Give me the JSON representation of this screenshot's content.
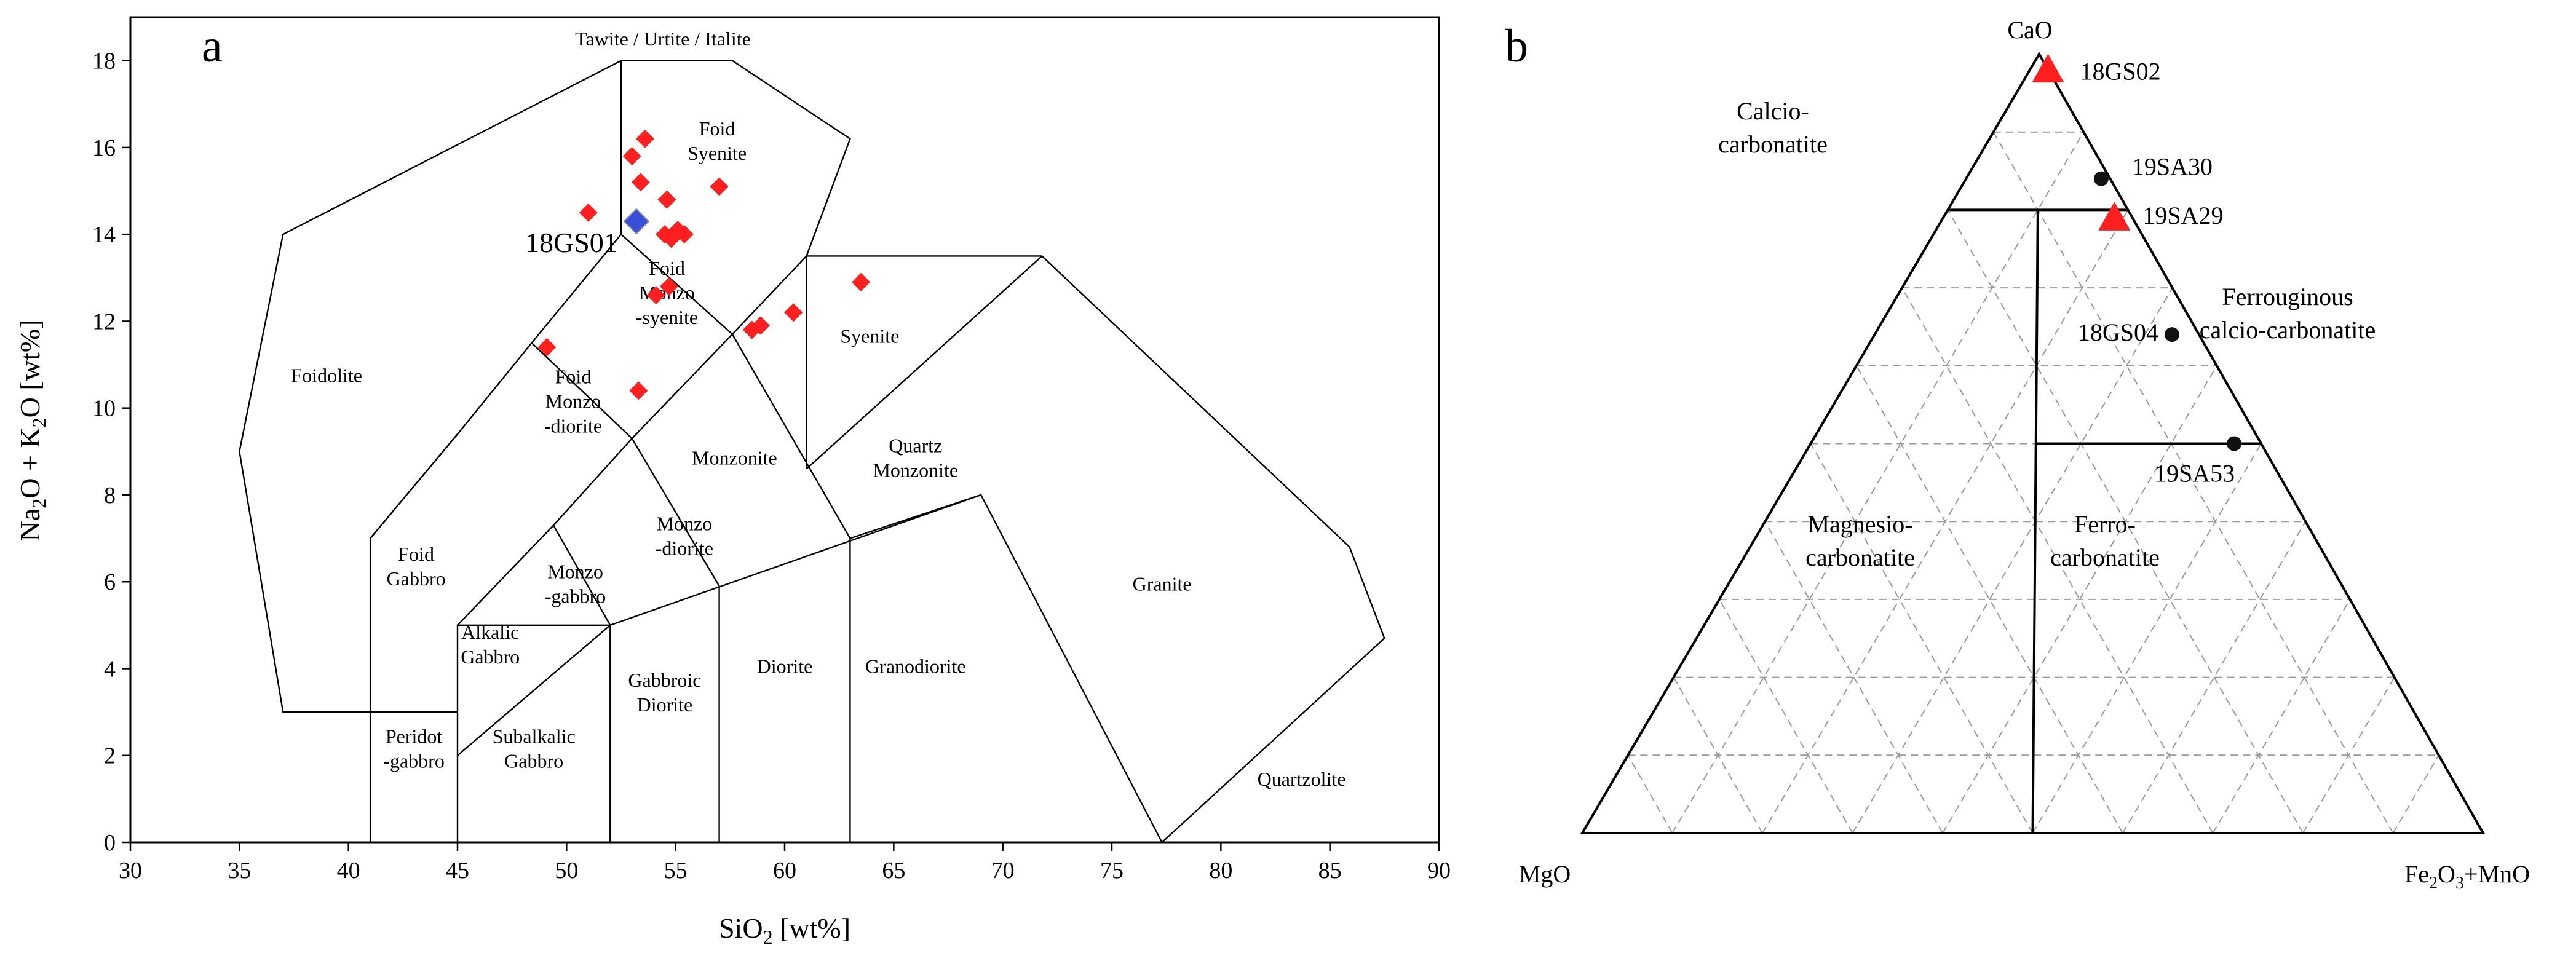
{
  "colors": {
    "sample_red": "#ff1f1f",
    "sample_blue": "#3a4fd8",
    "sample_black": "#111111",
    "grid_dashed": "#9a9a9a"
  },
  "panel_a": {
    "panel_label": "a",
    "chart_data": {
      "type": "scatter",
      "xlabel": "SiO2 [wt%]",
      "ylabel": "Na2O + K2O [wt%]",
      "xlim": [
        30,
        90
      ],
      "ylim": [
        0,
        19
      ],
      "xticks": [
        "30",
        "35",
        "40",
        "45",
        "50",
        "55",
        "60",
        "65",
        "70",
        "75",
        "80",
        "85",
        "90"
      ],
      "yticks": [
        "0",
        "2",
        "4",
        "6",
        "8",
        "10",
        "12",
        "14",
        "16",
        "18"
      ],
      "top_label": "Tawite / Urtite / Italite",
      "fields": [
        {
          "name": "Foidolite",
          "lines": [
            "Foidolite"
          ]
        },
        {
          "name": "Foid Syenite",
          "lines": [
            "Foid",
            "Syenite"
          ]
        },
        {
          "name": "Foid Monzo-syenite",
          "lines": [
            "Foid",
            "Monzo",
            "-syenite"
          ]
        },
        {
          "name": "Syenite",
          "lines": [
            "Syenite"
          ]
        },
        {
          "name": "Foid Monzo-diorite",
          "lines": [
            "Foid",
            "Monzo",
            "-diorite"
          ]
        },
        {
          "name": "Monzonite",
          "lines": [
            "Monzonite"
          ]
        },
        {
          "name": "Quartz Monzonite",
          "lines": [
            "Quartz",
            "Monzonite"
          ]
        },
        {
          "name": "Foid Gabbro",
          "lines": [
            "Foid",
            "Gabbro"
          ]
        },
        {
          "name": "Monzo-gabbro",
          "lines": [
            "Monzo",
            "-gabbro"
          ]
        },
        {
          "name": "Monzo-diorite",
          "lines": [
            "Monzo",
            "-diorite"
          ]
        },
        {
          "name": "Granite",
          "lines": [
            "Granite"
          ]
        },
        {
          "name": "Alkalic Gabbro",
          "lines": [
            "Alkalic",
            "Gabbro"
          ]
        },
        {
          "name": "Gabbroic Diorite",
          "lines": [
            "Gabbroic",
            "Diorite"
          ]
        },
        {
          "name": "Diorite",
          "lines": [
            "Diorite"
          ]
        },
        {
          "name": "Granodiorite",
          "lines": [
            "Granodiorite"
          ]
        },
        {
          "name": "Peridot-gabbro",
          "lines": [
            "Peridot",
            "-gabbro"
          ]
        },
        {
          "name": "Subalkalic Gabbro",
          "lines": [
            "Subalkalic",
            "Gabbro"
          ]
        },
        {
          "name": "Quartzolite",
          "lines": [
            "Quartzolite"
          ]
        }
      ],
      "series": [
        {
          "marker": "diamond",
          "color": "#ff1f1f",
          "points": [
            [
              53.6,
              16.2
            ],
            [
              53.0,
              15.8
            ],
            [
              53.4,
              15.2
            ],
            [
              51.0,
              14.5
            ],
            [
              54.6,
              14.8
            ],
            [
              57.0,
              15.1
            ],
            [
              54.5,
              14.0
            ],
            [
              55.1,
              14.1
            ],
            [
              54.8,
              13.9
            ],
            [
              55.4,
              14.0
            ],
            [
              54.1,
              12.6
            ],
            [
              54.7,
              12.8
            ],
            [
              49.1,
              11.4
            ],
            [
              53.3,
              10.4
            ],
            [
              58.5,
              11.8
            ],
            [
              58.9,
              11.9
            ],
            [
              60.4,
              12.2
            ],
            [
              63.5,
              12.9
            ]
          ]
        },
        {
          "name": "18GS01",
          "marker": "diamond",
          "color": "#3a4fd8",
          "points": [
            [
              53.2,
              14.3
            ]
          ]
        }
      ],
      "annotations": [
        {
          "text": "18GS01",
          "x": 53.2,
          "y": 14.3
        }
      ]
    }
  },
  "panel_b": {
    "panel_label": "b",
    "chart_data": {
      "type": "ternary",
      "corners": {
        "top": "CaO",
        "left": "MgO",
        "right_parts": [
          "Fe",
          "2",
          "O",
          "3",
          "+MnO"
        ]
      },
      "fields": [
        {
          "name": "Calcio-carbonatite",
          "lines": [
            "Calcio-",
            "carbonatite"
          ]
        },
        {
          "name": "Ferrouginous calcio-carbonatite",
          "lines": [
            "Ferrouginous",
            "calcio-carbonatite"
          ]
        },
        {
          "name": "Magnesio-carbonatite",
          "lines": [
            "Magnesio-",
            "carbonatite"
          ]
        },
        {
          "name": "Ferro-carbonatite",
          "lines": [
            "Ferro-",
            "carbonatite"
          ]
        }
      ],
      "boundaries": {
        "cao_upper": 0.8,
        "cao_lower": 0.5
      },
      "gridlines": 10,
      "samples": [
        {
          "name": "18GS02",
          "marker": "triangle",
          "color": "#ff1f1f",
          "CaO": 0.98,
          "Fe2O3+MnO": 0.02
        },
        {
          "name": "19SA30",
          "marker": "circle",
          "color": "#111111",
          "CaO": 0.84,
          "Fe2O3+MnO": 0.15
        },
        {
          "name": "19SA29",
          "marker": "triangle",
          "color": "#ff1f1f",
          "CaO": 0.79,
          "Fe2O3+MnO": 0.19
        },
        {
          "name": "18GS04",
          "marker": "circle",
          "color": "#111111",
          "CaO": 0.64,
          "Fe2O3+MnO": 0.33
        },
        {
          "name": "19SA53",
          "marker": "circle",
          "color": "#111111",
          "CaO": 0.5,
          "Fe2O3+MnO": 0.47
        }
      ]
    }
  }
}
